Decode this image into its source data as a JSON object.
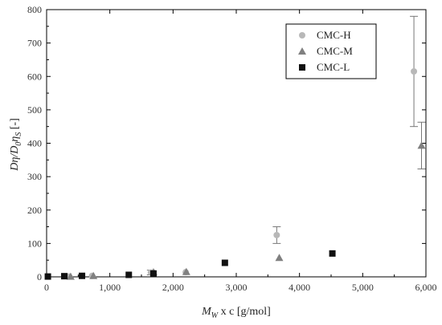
{
  "chart_data": {
    "type": "scatter",
    "x_axis": {
      "label_main": "M",
      "label_sub": "W",
      "label_rest": " x c [g/mol]",
      "range": [
        0,
        6000
      ],
      "ticks": [
        0,
        1000,
        2000,
        3000,
        4000,
        5000,
        6000
      ],
      "tick_labels": [
        "0",
        "1,000",
        "2,000",
        "3,000",
        "4,000",
        "5,000",
        "6,000"
      ]
    },
    "y_axis": {
      "label_a": "Dη/D",
      "label_b_sub": "0",
      "label_c": "η",
      "label_d_sub": "S",
      "label_e": " [-]",
      "range": [
        0,
        800
      ],
      "ticks": [
        0,
        100,
        200,
        300,
        400,
        500,
        600,
        700,
        800
      ],
      "tick_labels": [
        "0",
        "100",
        "200",
        "300",
        "400",
        "500",
        "600",
        "700",
        "800"
      ]
    },
    "grid": false,
    "legend_position": "top-right",
    "series": [
      {
        "name": "CMC-H",
        "marker": "circle",
        "color": "#b8b8b8",
        "points": [
          {
            "x": 350,
            "y": 1
          },
          {
            "x": 720,
            "y": 3
          },
          {
            "x": 1650,
            "y": 13,
            "err": 7
          },
          {
            "x": 2200,
            "y": 14
          },
          {
            "x": 3640,
            "y": 125,
            "err": 25
          },
          {
            "x": 5810,
            "y": 615,
            "err": 165
          }
        ]
      },
      {
        "name": "CMC-M",
        "marker": "triangle",
        "color": "#808080",
        "points": [
          {
            "x": 380,
            "y": 1
          },
          {
            "x": 740,
            "y": 3
          },
          {
            "x": 1690,
            "y": 14
          },
          {
            "x": 2210,
            "y": 15
          },
          {
            "x": 3680,
            "y": 57
          },
          {
            "x": 5930,
            "y": 393,
            "err": 70
          }
        ]
      },
      {
        "name": "CMC-L",
        "marker": "square",
        "color": "#111111",
        "points": [
          {
            "x": 20,
            "y": 1
          },
          {
            "x": 280,
            "y": 2
          },
          {
            "x": 560,
            "y": 3
          },
          {
            "x": 1300,
            "y": 6
          },
          {
            "x": 1690,
            "y": 10
          },
          {
            "x": 2820,
            "y": 42
          },
          {
            "x": 4520,
            "y": 70
          }
        ]
      }
    ]
  }
}
